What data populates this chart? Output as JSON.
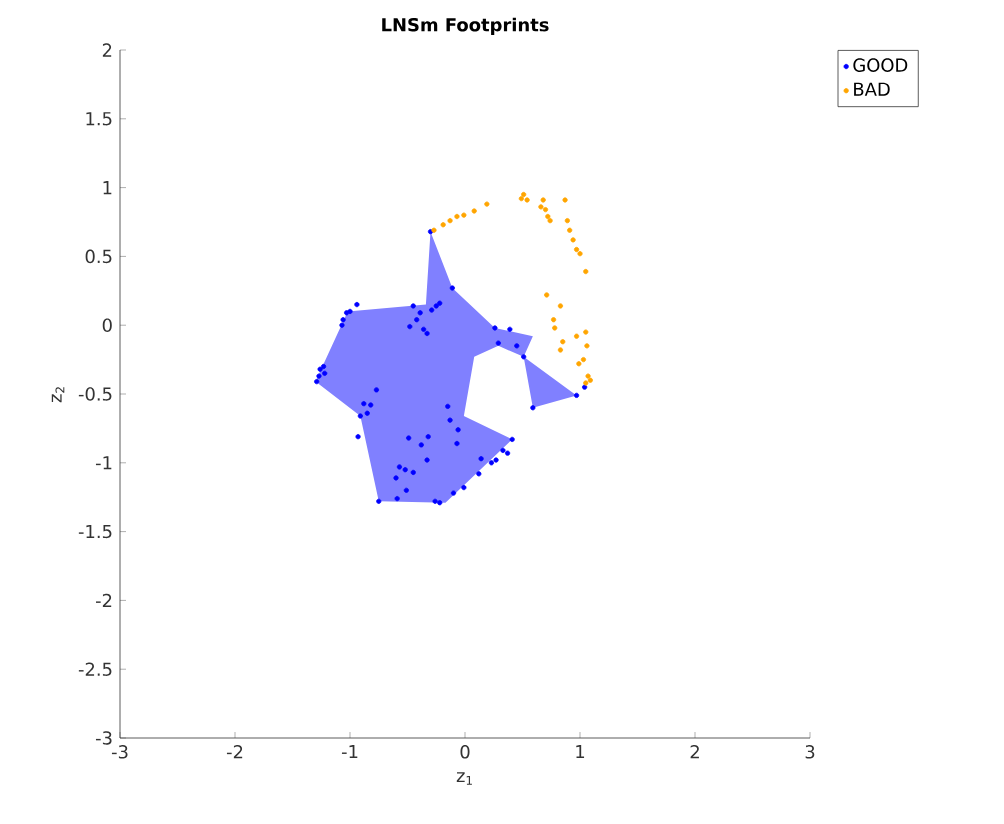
{
  "chart_data": {
    "type": "scatter",
    "title": "LNSm Footprints",
    "xlabel": "z$_{1}$",
    "ylabel": "z$_{2}$",
    "xlim": [
      -3,
      3
    ],
    "ylim": [
      -3,
      2
    ],
    "xticks": [
      -3,
      -2,
      -1,
      0,
      1,
      2,
      3
    ],
    "yticks": [
      -3,
      -2.5,
      -2,
      -1.5,
      -1,
      -0.5,
      0,
      0.5,
      1,
      1.5,
      2
    ],
    "legend": "top right",
    "series": [
      {
        "type": "area",
        "marker": "none",
        "color": "#8080ff",
        "x": [
          -0.3,
          -0.11,
          0.26,
          0.59,
          0.51,
          0.97,
          0.59,
          0.51,
          0.29,
          0.08,
          -0.01,
          0.41,
          -0.17,
          -0.75,
          -0.91,
          -1.3,
          -1.02,
          -0.34,
          -0.3
        ],
        "values": [
          0.68,
          0.27,
          -0.02,
          -0.08,
          -0.23,
          -0.51,
          -0.6,
          -0.23,
          -0.15,
          -0.23,
          -0.66,
          -0.83,
          -1.29,
          -1.28,
          -0.66,
          -0.41,
          0.1,
          0.15,
          0.68
        ]
      },
      {
        "name": "GOOD",
        "marker": "circle",
        "color": "#0000ff",
        "x": [
          -1.03,
          -1.06,
          -1.0,
          -0.94,
          -1.07,
          -1.26,
          -1.27,
          -1.23,
          -1.29,
          -1.22,
          -0.48,
          -0.42,
          -0.39,
          -0.36,
          -0.45,
          -0.25,
          -0.22,
          -0.29,
          -0.33,
          -0.88,
          -0.82,
          -0.91,
          -0.85,
          -0.77,
          -0.93,
          -0.32,
          -0.33,
          -0.49,
          -0.38,
          -0.57,
          -0.52,
          -0.6,
          -0.51,
          -0.45,
          -0.15,
          -0.13,
          -0.06,
          -0.07,
          0.23,
          0.14,
          0.27,
          0.33,
          0.41,
          0.37,
          0.12,
          -0.01,
          -0.1,
          -0.22,
          -0.26,
          -0.59,
          -0.75,
          0.26,
          0.29,
          0.39,
          0.45,
          0.51,
          0.59,
          0.97,
          1.04,
          -0.3,
          -0.11
        ],
        "values": [
          0.09,
          0.04,
          0.1,
          0.15,
          0.0,
          -0.32,
          -0.37,
          -0.3,
          -0.41,
          -0.35,
          -0.01,
          0.04,
          0.09,
          -0.03,
          0.14,
          0.14,
          0.16,
          0.11,
          -0.06,
          -0.57,
          -0.58,
          -0.66,
          -0.64,
          -0.47,
          -0.81,
          -0.81,
          -0.98,
          -0.82,
          -0.87,
          -1.03,
          -1.05,
          -1.11,
          -1.2,
          -1.07,
          -0.59,
          -0.69,
          -0.76,
          -0.86,
          -1.0,
          -0.97,
          -0.98,
          -0.91,
          -0.83,
          -0.93,
          -1.08,
          -1.18,
          -1.22,
          -1.29,
          -1.28,
          -1.26,
          -1.28,
          -0.02,
          -0.13,
          -0.03,
          -0.15,
          -0.23,
          -0.6,
          -0.51,
          -0.45,
          0.68,
          0.27
        ]
      },
      {
        "name": "BAD",
        "marker": "circle",
        "color": "#ffa500",
        "x": [
          -0.27,
          -0.19,
          -0.13,
          -0.07,
          -0.01,
          0.08,
          0.19,
          0.51,
          0.54,
          0.49,
          0.68,
          0.7,
          0.72,
          0.74,
          0.66,
          0.87,
          0.89,
          0.91,
          0.94,
          0.97,
          1.0,
          1.05,
          0.71,
          0.77,
          0.78,
          0.85,
          0.83,
          0.97,
          1.05,
          1.06,
          1.03,
          0.99,
          1.07,
          1.05,
          1.09,
          0.83
        ],
        "values": [
          0.69,
          0.73,
          0.76,
          0.79,
          0.8,
          0.83,
          0.88,
          0.95,
          0.91,
          0.92,
          0.91,
          0.84,
          0.79,
          0.76,
          0.86,
          0.91,
          0.76,
          0.69,
          0.62,
          0.55,
          0.52,
          0.39,
          0.22,
          0.04,
          -0.02,
          -0.12,
          -0.18,
          -0.08,
          -0.05,
          -0.15,
          -0.25,
          -0.28,
          -0.37,
          -0.42,
          -0.4,
          0.14
        ]
      }
    ]
  }
}
